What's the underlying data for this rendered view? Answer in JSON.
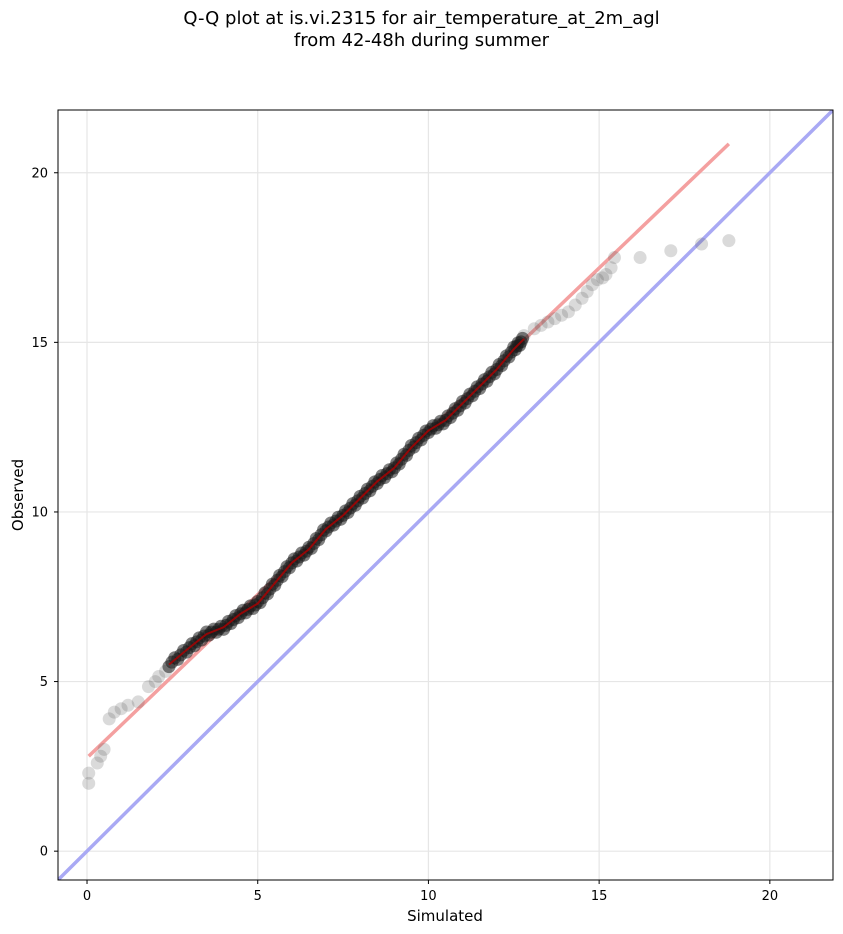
{
  "chart_data": {
    "type": "scatter",
    "title_line1": "Q-Q plot at is.vi.2315 for air_temperature_at_2m_agl",
    "title_line2": "from 42-48h during summer",
    "xlabel": "Simulated",
    "ylabel": "Observed",
    "xlim": [
      -0.85,
      21.85
    ],
    "ylim": [
      -0.85,
      21.85
    ],
    "xticks": [
      0,
      5,
      10,
      15,
      20
    ],
    "yticks": [
      0,
      5,
      10,
      15,
      20
    ],
    "grid": true,
    "sparse_points": [
      [
        0.05,
        2.0
      ],
      [
        0.05,
        2.3
      ],
      [
        0.3,
        2.6
      ],
      [
        0.4,
        2.8
      ],
      [
        0.5,
        3.0
      ],
      [
        0.65,
        3.9
      ],
      [
        0.8,
        4.1
      ],
      [
        1.0,
        4.2
      ],
      [
        1.2,
        4.3
      ],
      [
        1.5,
        4.4
      ],
      [
        1.8,
        4.85
      ],
      [
        2.0,
        5.0
      ],
      [
        2.1,
        5.15
      ],
      [
        2.3,
        5.3
      ],
      [
        12.8,
        15.2
      ],
      [
        13.1,
        15.4
      ],
      [
        13.3,
        15.5
      ],
      [
        13.5,
        15.6
      ],
      [
        13.7,
        15.7
      ],
      [
        13.9,
        15.8
      ],
      [
        14.1,
        15.9
      ],
      [
        14.3,
        16.1
      ],
      [
        14.5,
        16.3
      ],
      [
        14.65,
        16.5
      ],
      [
        14.8,
        16.7
      ],
      [
        14.95,
        16.85
      ],
      [
        15.1,
        16.9
      ],
      [
        15.2,
        17.0
      ],
      [
        15.35,
        17.2
      ],
      [
        15.45,
        17.5
      ],
      [
        16.2,
        17.5
      ],
      [
        17.1,
        17.7
      ],
      [
        18.0,
        17.9
      ],
      [
        18.8,
        18.0
      ]
    ],
    "dense_curve": [
      [
        2.4,
        5.5
      ],
      [
        3.0,
        6.0
      ],
      [
        3.5,
        6.4
      ],
      [
        4.0,
        6.6
      ],
      [
        4.5,
        7.0
      ],
      [
        5.0,
        7.3
      ],
      [
        5.5,
        7.9
      ],
      [
        6.0,
        8.5
      ],
      [
        6.5,
        8.9
      ],
      [
        7.0,
        9.5
      ],
      [
        7.5,
        9.9
      ],
      [
        8.0,
        10.4
      ],
      [
        8.5,
        10.9
      ],
      [
        9.0,
        11.3
      ],
      [
        9.5,
        11.9
      ],
      [
        10.0,
        12.4
      ],
      [
        10.5,
        12.7
      ],
      [
        11.0,
        13.2
      ],
      [
        11.5,
        13.7
      ],
      [
        12.0,
        14.2
      ],
      [
        12.5,
        14.8
      ],
      [
        12.8,
        15.1
      ]
    ],
    "point_color": "#555555",
    "regression_line": {
      "x": [
        0.05,
        18.8
      ],
      "y": [
        2.8,
        20.85
      ],
      "color": "#f4a0a0"
    },
    "identity_line": {
      "x": [
        -0.85,
        21.85
      ],
      "y": [
        -0.85,
        21.85
      ],
      "color": "#a9a9f4"
    },
    "trend_color": "#b00000"
  }
}
